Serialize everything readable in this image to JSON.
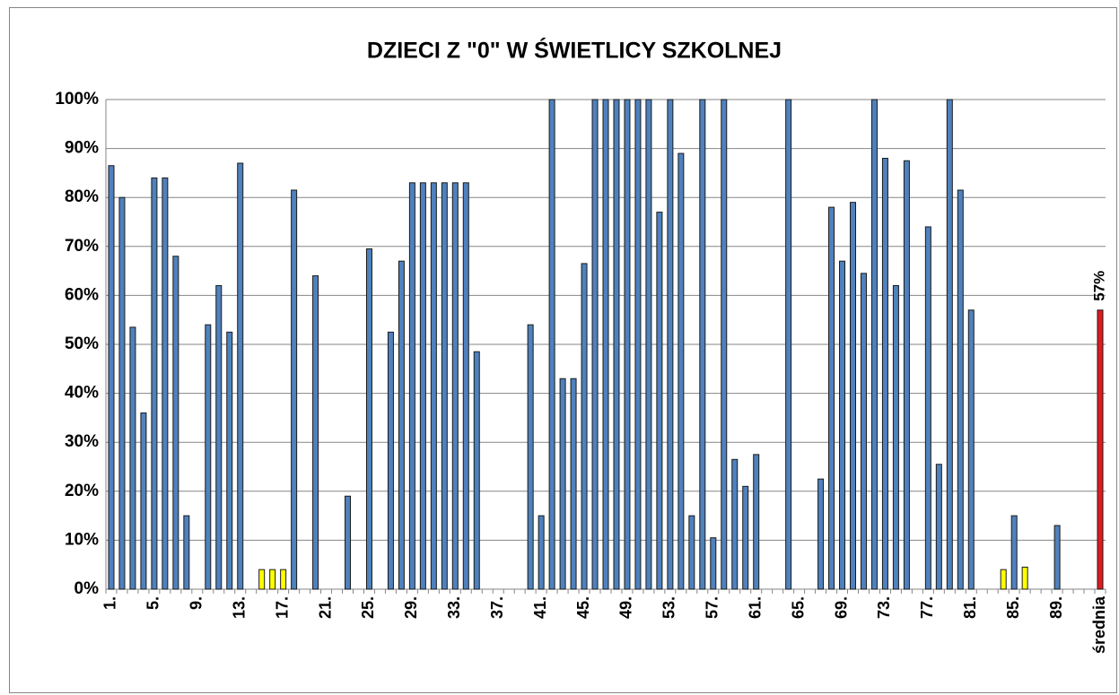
{
  "chart_data": {
    "type": "bar",
    "title": "DZIECI Z \"0\" W ŚWIETLICY SZKOLNEJ",
    "categories": [
      "1.",
      null,
      null,
      null,
      "5.",
      null,
      null,
      null,
      "9.",
      null,
      null,
      null,
      "13.",
      null,
      null,
      null,
      "17.",
      null,
      null,
      null,
      "21.",
      null,
      null,
      null,
      "25.",
      null,
      null,
      null,
      "29.",
      null,
      null,
      null,
      "33.",
      null,
      null,
      null,
      "37.",
      null,
      null,
      null,
      "41.",
      null,
      null,
      null,
      "45.",
      null,
      null,
      null,
      "49.",
      null,
      null,
      null,
      "53.",
      null,
      null,
      null,
      "57.",
      null,
      null,
      null,
      "61.",
      null,
      null,
      null,
      "65.",
      null,
      null,
      null,
      "69.",
      null,
      null,
      null,
      "73.",
      null,
      null,
      null,
      "77.",
      null,
      null,
      null,
      "81.",
      null,
      null,
      null,
      "85.",
      null,
      null,
      null,
      "89.",
      null,
      null,
      null,
      "średnia"
    ],
    "values": [
      86.5,
      80,
      53.5,
      36,
      84,
      84,
      68,
      15,
      null,
      54,
      62,
      52.5,
      87,
      null,
      4,
      4,
      4,
      81.5,
      null,
      64,
      null,
      null,
      19,
      null,
      69.5,
      null,
      52.5,
      67,
      83,
      83,
      83,
      83,
      83,
      83,
      48.5,
      null,
      null,
      null,
      null,
      54,
      15,
      100,
      43,
      43,
      66.5,
      100,
      100,
      100,
      100,
      100,
      100,
      77,
      100,
      89,
      15,
      100,
      10.5,
      100,
      26.5,
      21,
      27.5,
      null,
      null,
      100,
      null,
      null,
      22.5,
      78,
      67,
      79,
      64.5,
      100,
      88,
      62,
      87.5,
      null,
      74,
      25.5,
      100,
      81.5,
      57,
      null,
      null,
      4,
      15,
      4.5,
      null,
      null,
      13,
      null,
      null,
      null,
      57
    ],
    "value_labels": [
      null,
      null,
      null,
      null,
      null,
      null,
      null,
      null,
      null,
      null,
      null,
      null,
      null,
      null,
      null,
      null,
      null,
      null,
      null,
      null,
      null,
      null,
      null,
      null,
      null,
      null,
      null,
      null,
      null,
      null,
      null,
      null,
      null,
      null,
      null,
      null,
      null,
      null,
      null,
      null,
      null,
      null,
      null,
      null,
      null,
      null,
      null,
      null,
      null,
      null,
      null,
      null,
      null,
      null,
      null,
      null,
      null,
      null,
      null,
      null,
      null,
      null,
      null,
      null,
      null,
      null,
      null,
      null,
      null,
      null,
      null,
      null,
      null,
      null,
      null,
      null,
      null,
      null,
      null,
      null,
      null,
      null,
      null,
      null,
      null,
      null,
      null,
      null,
      null,
      null,
      null,
      null,
      "57%"
    ],
    "colors": [
      "#4f81bd",
      "#4f81bd",
      "#4f81bd",
      "#4f81bd",
      "#4f81bd",
      "#4f81bd",
      "#4f81bd",
      "#4f81bd",
      "#4f81bd",
      "#4f81bd",
      "#4f81bd",
      "#4f81bd",
      "#4f81bd",
      "#4f81bd",
      "#ffff00",
      "#ffff00",
      "#ffff00",
      "#4f81bd",
      "#4f81bd",
      "#4f81bd",
      "#4f81bd",
      "#4f81bd",
      "#4f81bd",
      "#4f81bd",
      "#4f81bd",
      "#4f81bd",
      "#4f81bd",
      "#4f81bd",
      "#4f81bd",
      "#4f81bd",
      "#4f81bd",
      "#4f81bd",
      "#4f81bd",
      "#4f81bd",
      "#4f81bd",
      "#4f81bd",
      "#4f81bd",
      "#4f81bd",
      "#4f81bd",
      "#4f81bd",
      "#4f81bd",
      "#4f81bd",
      "#4f81bd",
      "#4f81bd",
      "#4f81bd",
      "#4f81bd",
      "#4f81bd",
      "#4f81bd",
      "#4f81bd",
      "#4f81bd",
      "#4f81bd",
      "#4f81bd",
      "#4f81bd",
      "#4f81bd",
      "#4f81bd",
      "#4f81bd",
      "#4f81bd",
      "#4f81bd",
      "#4f81bd",
      "#4f81bd",
      "#4f81bd",
      "#4f81bd",
      "#4f81bd",
      "#4f81bd",
      "#4f81bd",
      "#4f81bd",
      "#4f81bd",
      "#4f81bd",
      "#4f81bd",
      "#4f81bd",
      "#4f81bd",
      "#4f81bd",
      "#4f81bd",
      "#4f81bd",
      "#4f81bd",
      "#4f81bd",
      "#4f81bd",
      "#4f81bd",
      "#4f81bd",
      "#4f81bd",
      "#4f81bd",
      "#4f81bd",
      "#4f81bd",
      "#ffff00",
      "#4f81bd",
      "#ffff00",
      "#4f81bd",
      "#4f81bd",
      "#4f81bd",
      "#4f81bd",
      "#4f81bd",
      "#4f81bd",
      "#e31a1c"
    ],
    "ylim": [
      0,
      100
    ],
    "yticks": [
      {
        "value": 0,
        "label": "0%"
      },
      {
        "value": 10,
        "label": "10%"
      },
      {
        "value": 20,
        "label": "20%"
      },
      {
        "value": 30,
        "label": "30%"
      },
      {
        "value": 40,
        "label": "40%"
      },
      {
        "value": 50,
        "label": "50%"
      },
      {
        "value": 60,
        "label": "60%"
      },
      {
        "value": 70,
        "label": "70%"
      },
      {
        "value": 80,
        "label": "80%"
      },
      {
        "value": 90,
        "label": "90%"
      },
      {
        "value": 100,
        "label": "100%"
      }
    ],
    "grid": true
  }
}
